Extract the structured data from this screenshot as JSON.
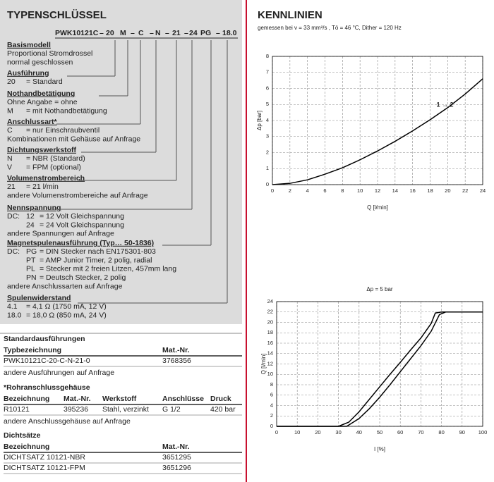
{
  "typenschluessel": {
    "title": "TYPENSCHLÜSSEL",
    "code": [
      "PWK10121C",
      "–",
      "20",
      "M",
      "–",
      "C",
      "–",
      "N",
      "–",
      "21",
      "–",
      "24",
      "PG",
      "–",
      "18.0"
    ],
    "sections": [
      {
        "heading": "Basismodell",
        "lines": [
          {
            "text": "Proportional Stromdrossel"
          },
          {
            "text": "normal geschlossen"
          }
        ]
      },
      {
        "heading": "Ausführung",
        "lines": [
          {
            "key": "20",
            "text": "= Standard"
          }
        ]
      },
      {
        "heading": "Nothandbetätigung",
        "lines": [
          {
            "text": "Ohne Angabe = ohne"
          },
          {
            "key": "M",
            "text": "= mit Nothandbetätigung"
          }
        ]
      },
      {
        "heading": "Anschlussart*",
        "lines": [
          {
            "key": "C",
            "text": "= nur Einschraubventil"
          },
          {
            "text": "Kombinationen mit Gehäuse auf Anfrage"
          }
        ]
      },
      {
        "heading": "Dichtungswerkstoff",
        "lines": [
          {
            "key": "N",
            "text": "= NBR (Standard)"
          },
          {
            "key": "V",
            "text": "= FPM (optional)"
          }
        ]
      },
      {
        "heading": "Volumenstrombereich",
        "lines": [
          {
            "key": "21",
            "text": "= 21 l/min"
          },
          {
            "text": "andere Volumenstrombereiche auf Anfrage"
          }
        ]
      },
      {
        "heading": "Nennspannung",
        "lines": [
          {
            "prefix": "DC:",
            "key": "12",
            "text": "= 12 Volt Gleichspannung"
          },
          {
            "key": "24",
            "text": "= 24 Volt Gleichspannung"
          },
          {
            "text": "andere Spannungen auf Anfrage"
          }
        ]
      },
      {
        "heading": "Magnetspulenausführung (Typ… 50-1836)",
        "lines": [
          {
            "prefix": "DC:",
            "key": "PG",
            "text": "= DIN Stecker nach EN175301-803"
          },
          {
            "key": "PT",
            "text": "= AMP Junior Timer, 2 polig, radial"
          },
          {
            "key": "PL",
            "text": "= Stecker mit 2 freien Litzen, 457mm lang"
          },
          {
            "key": "PN",
            "text": "= Deutsch Stecker, 2 polig"
          },
          {
            "text": "andere Anschlussarten auf Anfrage"
          }
        ]
      },
      {
        "heading": "Spulenwiderstand",
        "lines": [
          {
            "key": "4.1",
            "text": "= 4,1 Ω (1750 mA, 12 V)"
          },
          {
            "key": "18.0",
            "text": "= 18,0 Ω (850 mA, 24 V)"
          }
        ]
      }
    ]
  },
  "tables": [
    {
      "title": "Standardausführungen",
      "header": [
        "Typbezeichnung",
        "Mat.-Nr."
      ],
      "rows": [
        [
          "PWK10121C-20-C-N-21-0",
          "3768356"
        ]
      ],
      "note": "andere Ausführungen auf Anfrage"
    },
    {
      "title": "*Rohranschlussgehäuse",
      "header": [
        "Bezeichnung",
        "Mat.-Nr.",
        "Werkstoff",
        "Anschlüsse",
        "Druck"
      ],
      "rows": [
        [
          "R10121",
          "395236",
          "Stahl, verzinkt",
          "G 1/2",
          "420 bar"
        ]
      ],
      "note": "andere Anschlussgehäuse auf Anfrage"
    },
    {
      "title": "Dichtsätze",
      "header": [
        "Bezeichnung",
        "Mat.-Nr."
      ],
      "rows": [
        [
          "DICHTSATZ 10121-NBR",
          "3651295"
        ],
        [
          "DICHTSATZ 10121-FPM",
          "3651296"
        ]
      ]
    }
  ],
  "kennlinien": {
    "title": "KENNLINIEN",
    "subtitle": "gemessen bei ν = 33 mm²/s , Tö = 46 °C, Dither = 120 Hz"
  },
  "chart_data": [
    {
      "type": "line",
      "x_label": "Q [l/min]",
      "y_label": "Δp [bar]",
      "annotation": "1 → 2",
      "x": [
        0,
        2,
        4,
        6,
        8,
        10,
        12,
        14,
        16,
        18,
        20,
        22,
        24
      ],
      "series": [
        {
          "color": "#000000",
          "values": [
            0,
            0.08,
            0.3,
            0.65,
            1.05,
            1.55,
            2.1,
            2.7,
            3.35,
            4.05,
            4.8,
            5.65,
            6.6
          ]
        }
      ],
      "xlim": [
        0,
        24
      ],
      "xticks": [
        0,
        2,
        4,
        6,
        8,
        10,
        12,
        14,
        16,
        18,
        20,
        22,
        24
      ],
      "ylim": [
        0,
        8
      ],
      "yticks": [
        0,
        1,
        2,
        3,
        4,
        5,
        6,
        7,
        8
      ],
      "grid": true
    },
    {
      "type": "line",
      "title": "Δp = 5 bar",
      "x_label": "I [%]",
      "y_label": "Q [l/min]",
      "series": [
        {
          "color": "#000000",
          "x": [
            0,
            30,
            35,
            40,
            45,
            50,
            55,
            60,
            65,
            70,
            75,
            77,
            80,
            90,
            100
          ],
          "values": [
            0,
            0,
            0.8,
            2.8,
            5.2,
            7.6,
            10,
            12.3,
            14.7,
            17,
            19.8,
            21.8,
            22,
            22,
            22
          ]
        },
        {
          "color": "#000000",
          "x": [
            0,
            34,
            40,
            45,
            50,
            55,
            60,
            65,
            70,
            75,
            79,
            82,
            90,
            100
          ],
          "values": [
            0,
            0,
            1.5,
            3.4,
            5.6,
            8,
            10.5,
            13,
            15.5,
            18.3,
            21.5,
            22,
            22,
            22
          ]
        }
      ],
      "xlim": [
        0,
        100
      ],
      "xticks": [
        0,
        10,
        20,
        30,
        40,
        50,
        60,
        70,
        80,
        90,
        100
      ],
      "ylim": [
        0,
        24
      ],
      "yticks": [
        0,
        2,
        4,
        6,
        8,
        10,
        12,
        14,
        16,
        18,
        20,
        22,
        24
      ],
      "grid": true
    }
  ]
}
